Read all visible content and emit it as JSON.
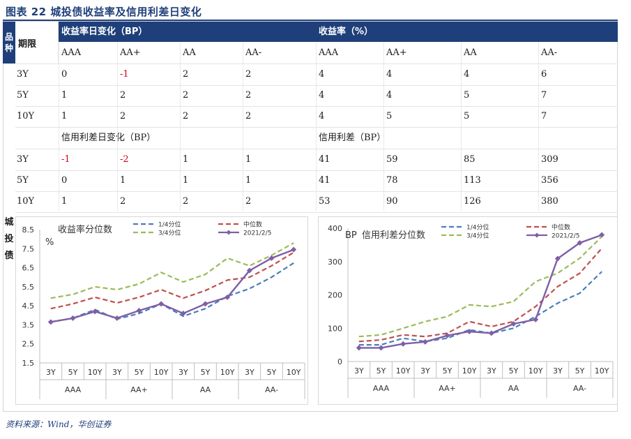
{
  "title": "图表 22   城投债收益率及信用利差日变化",
  "source": "资料来源：Wind，华创证券",
  "side_header": [
    "品",
    "种"
  ],
  "side_label": [
    "城",
    "投",
    "债"
  ],
  "table": {
    "period_header": "期限",
    "yield_change_header": "收益率日变化（BP）",
    "yield_header": "收益率（%）",
    "spread_change_header": "信用利差日变化（BP）",
    "spread_header": "信用利差（BP）",
    "ratings": [
      "AAA",
      "AA+",
      "AA",
      "AA-"
    ],
    "yield_rows": [
      {
        "term": "3Y",
        "chg": [
          "0",
          "-1",
          "2",
          "2"
        ],
        "val": [
          "4",
          "4",
          "4",
          "6"
        ]
      },
      {
        "term": "5Y",
        "chg": [
          "1",
          "2",
          "2",
          "2"
        ],
        "val": [
          "4",
          "4",
          "5",
          "7"
        ]
      },
      {
        "term": "10Y",
        "chg": [
          "1",
          "2",
          "2",
          "2"
        ],
        "val": [
          "4",
          "5",
          "5",
          "7"
        ]
      }
    ],
    "spread_rows": [
      {
        "term": "3Y",
        "chg": [
          "-1",
          "-2",
          "1",
          "1"
        ],
        "val": [
          "41",
          "59",
          "85",
          "309"
        ]
      },
      {
        "term": "5Y",
        "chg": [
          "0",
          "1",
          "1",
          "1"
        ],
        "val": [
          "41",
          "78",
          "113",
          "356"
        ]
      },
      {
        "term": "10Y",
        "chg": [
          "1",
          "2",
          "2",
          "2"
        ],
        "val": [
          "53",
          "90",
          "126",
          "380"
        ]
      }
    ]
  },
  "chart_data": [
    {
      "type": "line",
      "title": "收益率分位数",
      "ylabel": "%",
      "ylim": [
        1.5,
        8.5
      ],
      "yticks": [
        "1.5",
        "2.5",
        "3.5",
        "4.5",
        "5.5",
        "6.5",
        "7.5",
        "8.5"
      ],
      "categories": [
        "3Y",
        "5Y",
        "10Y",
        "3Y",
        "5Y",
        "10Y",
        "3Y",
        "5Y",
        "10Y",
        "3Y",
        "5Y",
        "10Y"
      ],
      "groups": [
        "AAA",
        "AA+",
        "AA",
        "AA-"
      ],
      "series": [
        {
          "name": "1/4分位",
          "color": "#4a7ebb",
          "dash": true,
          "values": [
            3.65,
            3.85,
            4.3,
            3.8,
            4.1,
            4.6,
            3.95,
            4.35,
            5.0,
            5.4,
            6.0,
            6.75
          ]
        },
        {
          "name": "中位数",
          "color": "#c0504d",
          "dash": true,
          "values": [
            4.35,
            4.6,
            4.95,
            4.65,
            4.95,
            5.35,
            4.9,
            5.3,
            5.85,
            6.0,
            6.6,
            7.3
          ]
        },
        {
          "name": "3/4分位",
          "color": "#9bbb59",
          "dash": true,
          "values": [
            4.9,
            5.1,
            5.5,
            5.35,
            5.65,
            6.25,
            5.75,
            6.15,
            7.0,
            6.6,
            7.15,
            7.8
          ]
        },
        {
          "name": "2021/2/5",
          "color": "#7f5fa6",
          "dash": false,
          "marker": true,
          "values": [
            3.65,
            3.85,
            4.2,
            3.85,
            4.25,
            4.6,
            4.1,
            4.6,
            4.95,
            6.35,
            7.0,
            7.45
          ]
        }
      ]
    },
    {
      "type": "line",
      "title": "信用利差分位数",
      "ylabel": "BP",
      "ylim": [
        0,
        400
      ],
      "yticks": [
        "0",
        "100",
        "200",
        "300",
        "400"
      ],
      "categories": [
        "3Y",
        "5Y",
        "10Y",
        "3Y",
        "5Y",
        "10Y",
        "3Y",
        "5Y",
        "10Y",
        "3Y",
        "5Y",
        "10Y"
      ],
      "groups": [
        "AAA",
        "AA+",
        "AA",
        "AA-"
      ],
      "series": [
        {
          "name": "1/4分位",
          "color": "#4a7ebb",
          "dash": true,
          "values": [
            50,
            50,
            70,
            60,
            70,
            95,
            85,
            100,
            135,
            175,
            205,
            270
          ]
        },
        {
          "name": "中位数",
          "color": "#c0504d",
          "dash": true,
          "values": [
            60,
            65,
            80,
            75,
            85,
            120,
            105,
            120,
            165,
            225,
            265,
            340
          ]
        },
        {
          "name": "3/4分位",
          "color": "#9bbb59",
          "dash": true,
          "values": [
            75,
            80,
            100,
            120,
            135,
            170,
            165,
            180,
            240,
            265,
            310,
            375
          ]
        },
        {
          "name": "2021/2/5",
          "color": "#7f5fa6",
          "dash": false,
          "marker": true,
          "values": [
            41,
            41,
            53,
            59,
            78,
            90,
            85,
            113,
            126,
            309,
            356,
            380
          ]
        }
      ]
    }
  ]
}
